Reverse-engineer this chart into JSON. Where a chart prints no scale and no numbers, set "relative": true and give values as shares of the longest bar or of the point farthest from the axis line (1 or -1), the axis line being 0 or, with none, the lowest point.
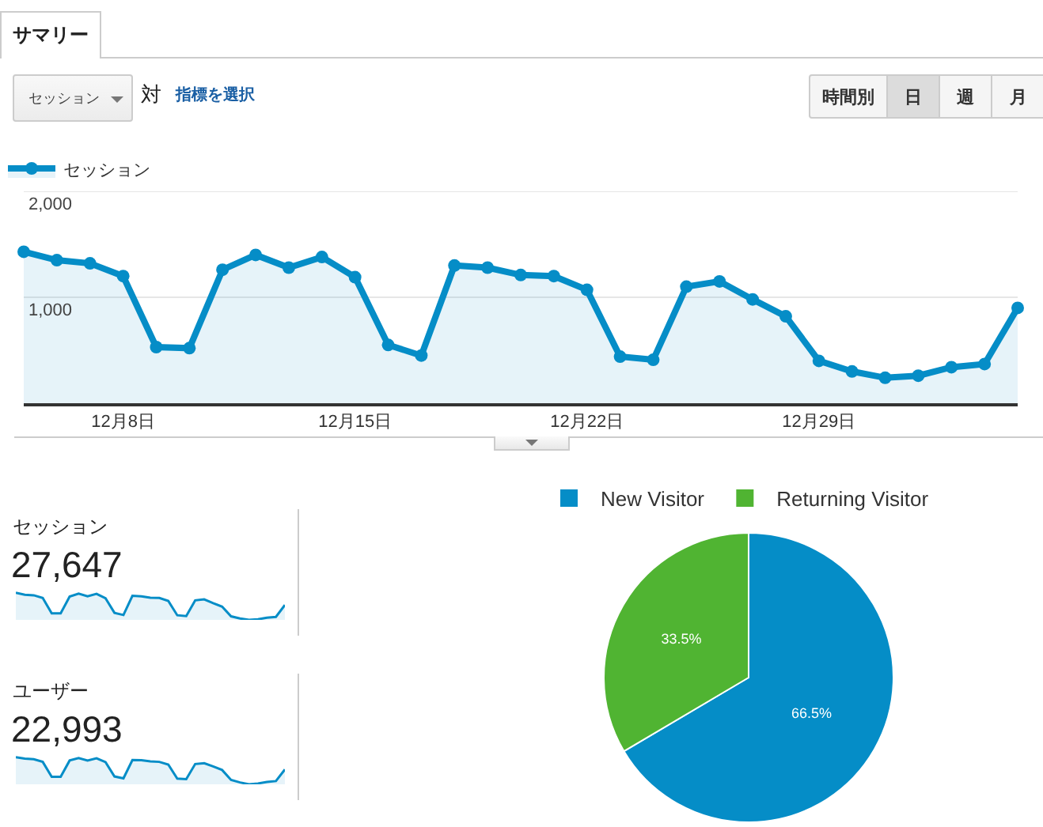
{
  "chart_data": [
    {
      "type": "other",
      "title": "サマリー",
      "annotations": [
        "セッション",
        "対",
        "指標を選択",
        "時間別",
        "日",
        "週",
        "月"
      ]
    },
    {
      "type": "area",
      "categories": [
        null,
        null,
        null,
        "12月8日",
        null,
        null,
        null,
        null,
        null,
        null,
        "12月15日",
        null,
        null,
        null,
        null,
        null,
        null,
        "12月22日",
        null,
        null,
        null,
        null,
        null,
        null,
        "12月29日",
        null,
        null,
        null,
        null,
        null,
        null
      ],
      "series": [
        {
          "name": "セッション",
          "color": "#058dc7",
          "values": [
            1430,
            1350,
            1320,
            1200,
            530,
            520,
            1260,
            1400,
            1280,
            1380,
            1190,
            550,
            450,
            1300,
            1280,
            1210,
            1200,
            1070,
            440,
            410,
            1100,
            1150,
            980,
            820,
            400,
            300,
            240,
            260,
            340,
            370,
            900
          ]
        }
      ],
      "ylim": [
        0,
        2000
      ],
      "yticks": [
        {
          "value": 1000,
          "label": "1,000"
        },
        {
          "value": 2000,
          "label": "2,000"
        }
      ],
      "grid": "y",
      "legend": "top left",
      "marker": "circle"
    },
    {
      "type": "area",
      "title": "セッション",
      "subtitle": "27,647",
      "relative": true,
      "categories": [
        null,
        null,
        null,
        null,
        null,
        null,
        null,
        null,
        null,
        null,
        null,
        null,
        null,
        null,
        null,
        null,
        null,
        null,
        null,
        null,
        null,
        null,
        null,
        null,
        null,
        null,
        null,
        null,
        null,
        null,
        null
      ],
      "series": [
        {
          "color": "#058dc7",
          "values": [
            1.0,
            0.93,
            0.91,
            0.81,
            0.24,
            0.24,
            0.86,
            0.97,
            0.87,
            0.96,
            0.8,
            0.26,
            0.18,
            0.89,
            0.87,
            0.82,
            0.81,
            0.7,
            0.17,
            0.14,
            0.72,
            0.76,
            0.62,
            0.49,
            0.13,
            0.05,
            0,
            0.02,
            0.08,
            0.11,
            0.55
          ]
        }
      ]
    },
    {
      "type": "area",
      "title": "ユーザー",
      "subtitle": "22,993",
      "relative": true,
      "categories": [
        null,
        null,
        null,
        null,
        null,
        null,
        null,
        null,
        null,
        null,
        null,
        null,
        null,
        null,
        null,
        null,
        null,
        null,
        null,
        null,
        null,
        null,
        null,
        null,
        null,
        null,
        null,
        null,
        null,
        null,
        null
      ],
      "series": [
        {
          "color": "#058dc7",
          "values": [
            1.0,
            0.95,
            0.93,
            0.83,
            0.28,
            0.28,
            0.88,
            0.97,
            0.88,
            0.96,
            0.82,
            0.29,
            0.22,
            0.9,
            0.89,
            0.85,
            0.83,
            0.73,
            0.21,
            0.19,
            0.75,
            0.78,
            0.66,
            0.53,
            0.16,
            0.07,
            0,
            0.03,
            0.09,
            0.12,
            0.55
          ]
        }
      ]
    },
    {
      "type": "pie",
      "categories": [
        "New Visitor",
        "Returning Visitor"
      ],
      "values": [
        66.5,
        33.5
      ],
      "colors": [
        "#058dc7",
        "#50b432"
      ],
      "value_labels": [
        "66.5%",
        "33.5%"
      ],
      "legend": "top"
    }
  ]
}
